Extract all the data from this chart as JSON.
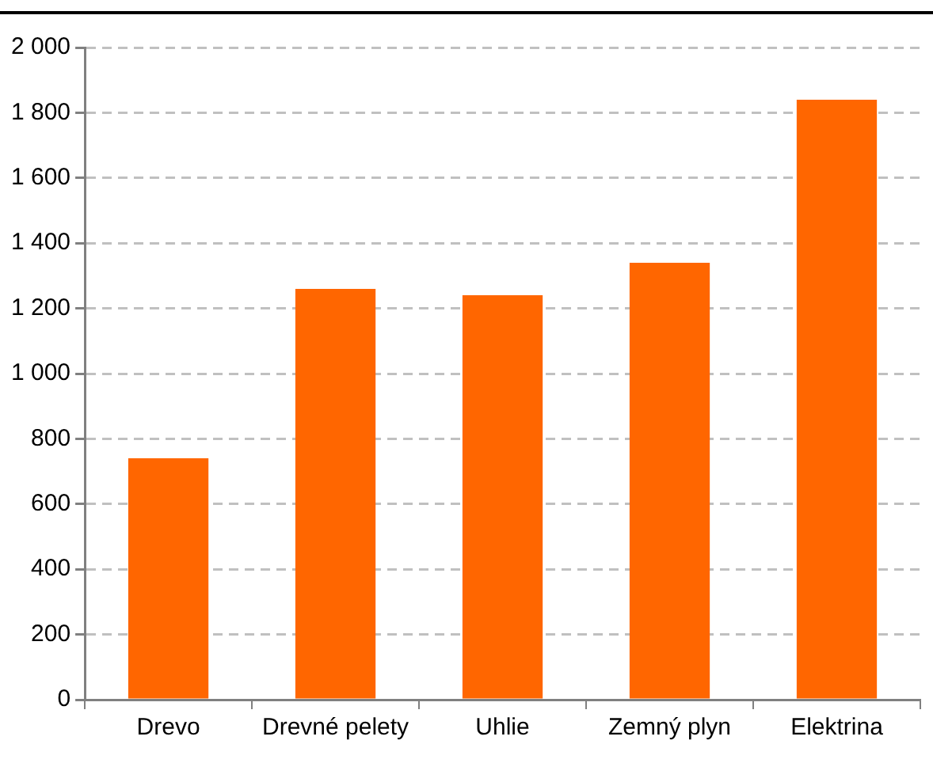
{
  "chart_data": {
    "type": "bar",
    "categories": [
      "Drevo",
      "Drevné pelety",
      "Uhlie",
      "Zemný plyn",
      "Elektrina"
    ],
    "values": [
      740,
      1260,
      1240,
      1340,
      1840
    ],
    "color": "#ff6600",
    "ylim": [
      0,
      2000
    ],
    "yticks": [
      0,
      200,
      400,
      600,
      800,
      {
        "value": 1000,
        "label": "1 000"
      },
      {
        "value": 1200,
        "label": "1 200"
      },
      {
        "value": 1400,
        "label": "1 400"
      },
      {
        "value": 1600,
        "label": "1 600"
      },
      {
        "value": 1800,
        "label": "1 800"
      },
      {
        "value": 2000,
        "label": "2 000"
      }
    ],
    "grid": "y"
  }
}
